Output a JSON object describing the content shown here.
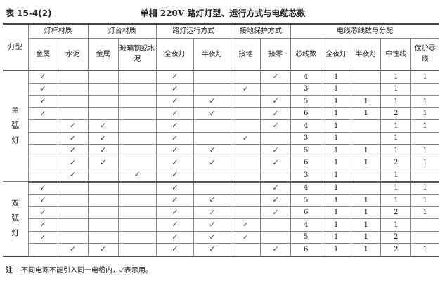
{
  "title": {
    "number": "表 15-4(2)",
    "name": "单相 220V 路灯灯型、运行方式与电缆芯数"
  },
  "headers": {
    "lamp_type": "灯型",
    "groups": [
      "灯杆材质",
      "灯台材质",
      "路灯运行方式",
      "接地保护方式",
      "电缆芯线数与分配"
    ],
    "sub": [
      "金属",
      "水泥",
      "金属",
      "玻璃钢或水泥",
      "全夜灯",
      "半夜灯",
      "接地",
      "接零",
      "芯线数",
      "全夜灯",
      "半夜灯",
      "中性线",
      "保护零线"
    ]
  },
  "check_mark": "✓",
  "groups": [
    {
      "type": "单弧灯",
      "rows": [
        [
          1,
          0,
          0,
          0,
          1,
          0,
          0,
          1,
          "4",
          "1",
          "",
          "1",
          "1"
        ],
        [
          1,
          0,
          0,
          0,
          1,
          0,
          1,
          0,
          "3",
          "1",
          "",
          "1",
          ""
        ],
        [
          1,
          0,
          0,
          0,
          1,
          1,
          0,
          1,
          "5",
          "1",
          "1",
          "1",
          "1"
        ],
        [
          1,
          0,
          0,
          0,
          1,
          1,
          0,
          1,
          "6",
          "1",
          "1",
          "2",
          "1"
        ],
        [
          0,
          1,
          1,
          0,
          1,
          0,
          0,
          1,
          "4",
          "1",
          "",
          "1",
          "1"
        ],
        [
          0,
          1,
          1,
          0,
          1,
          0,
          1,
          0,
          "3",
          "1",
          "",
          "1",
          ""
        ],
        [
          0,
          1,
          1,
          0,
          1,
          1,
          0,
          1,
          "5",
          "1",
          "1",
          "1",
          "1"
        ],
        [
          0,
          1,
          1,
          0,
          1,
          1,
          0,
          1,
          "6",
          "1",
          "1",
          "2",
          "1"
        ],
        [
          0,
          1,
          0,
          1,
          1,
          0,
          0,
          0,
          "3",
          "1",
          "",
          "1",
          ""
        ]
      ]
    },
    {
      "type": "双弧灯",
      "rows": [
        [
          1,
          0,
          0,
          0,
          1,
          0,
          0,
          1,
          "4",
          "1",
          "",
          "1",
          "1"
        ],
        [
          1,
          0,
          0,
          0,
          1,
          1,
          0,
          1,
          "5",
          "1",
          "1",
          "1",
          "1"
        ],
        [
          1,
          0,
          0,
          0,
          1,
          1,
          0,
          1,
          "6",
          "1",
          "1",
          "2",
          "1"
        ],
        [
          1,
          0,
          0,
          0,
          1,
          1,
          1,
          0,
          "4",
          "1",
          "1",
          "1",
          ""
        ],
        [
          1,
          0,
          0,
          0,
          1,
          1,
          1,
          0,
          "5",
          "1",
          "1",
          "2",
          ""
        ],
        [
          0,
          1,
          1,
          0,
          1,
          1,
          0,
          1,
          "6",
          "1",
          "1",
          "2",
          "1"
        ]
      ]
    }
  ],
  "note": {
    "label": "注",
    "text": "不同电源不能引入同一电缆内，✓表示用。"
  }
}
